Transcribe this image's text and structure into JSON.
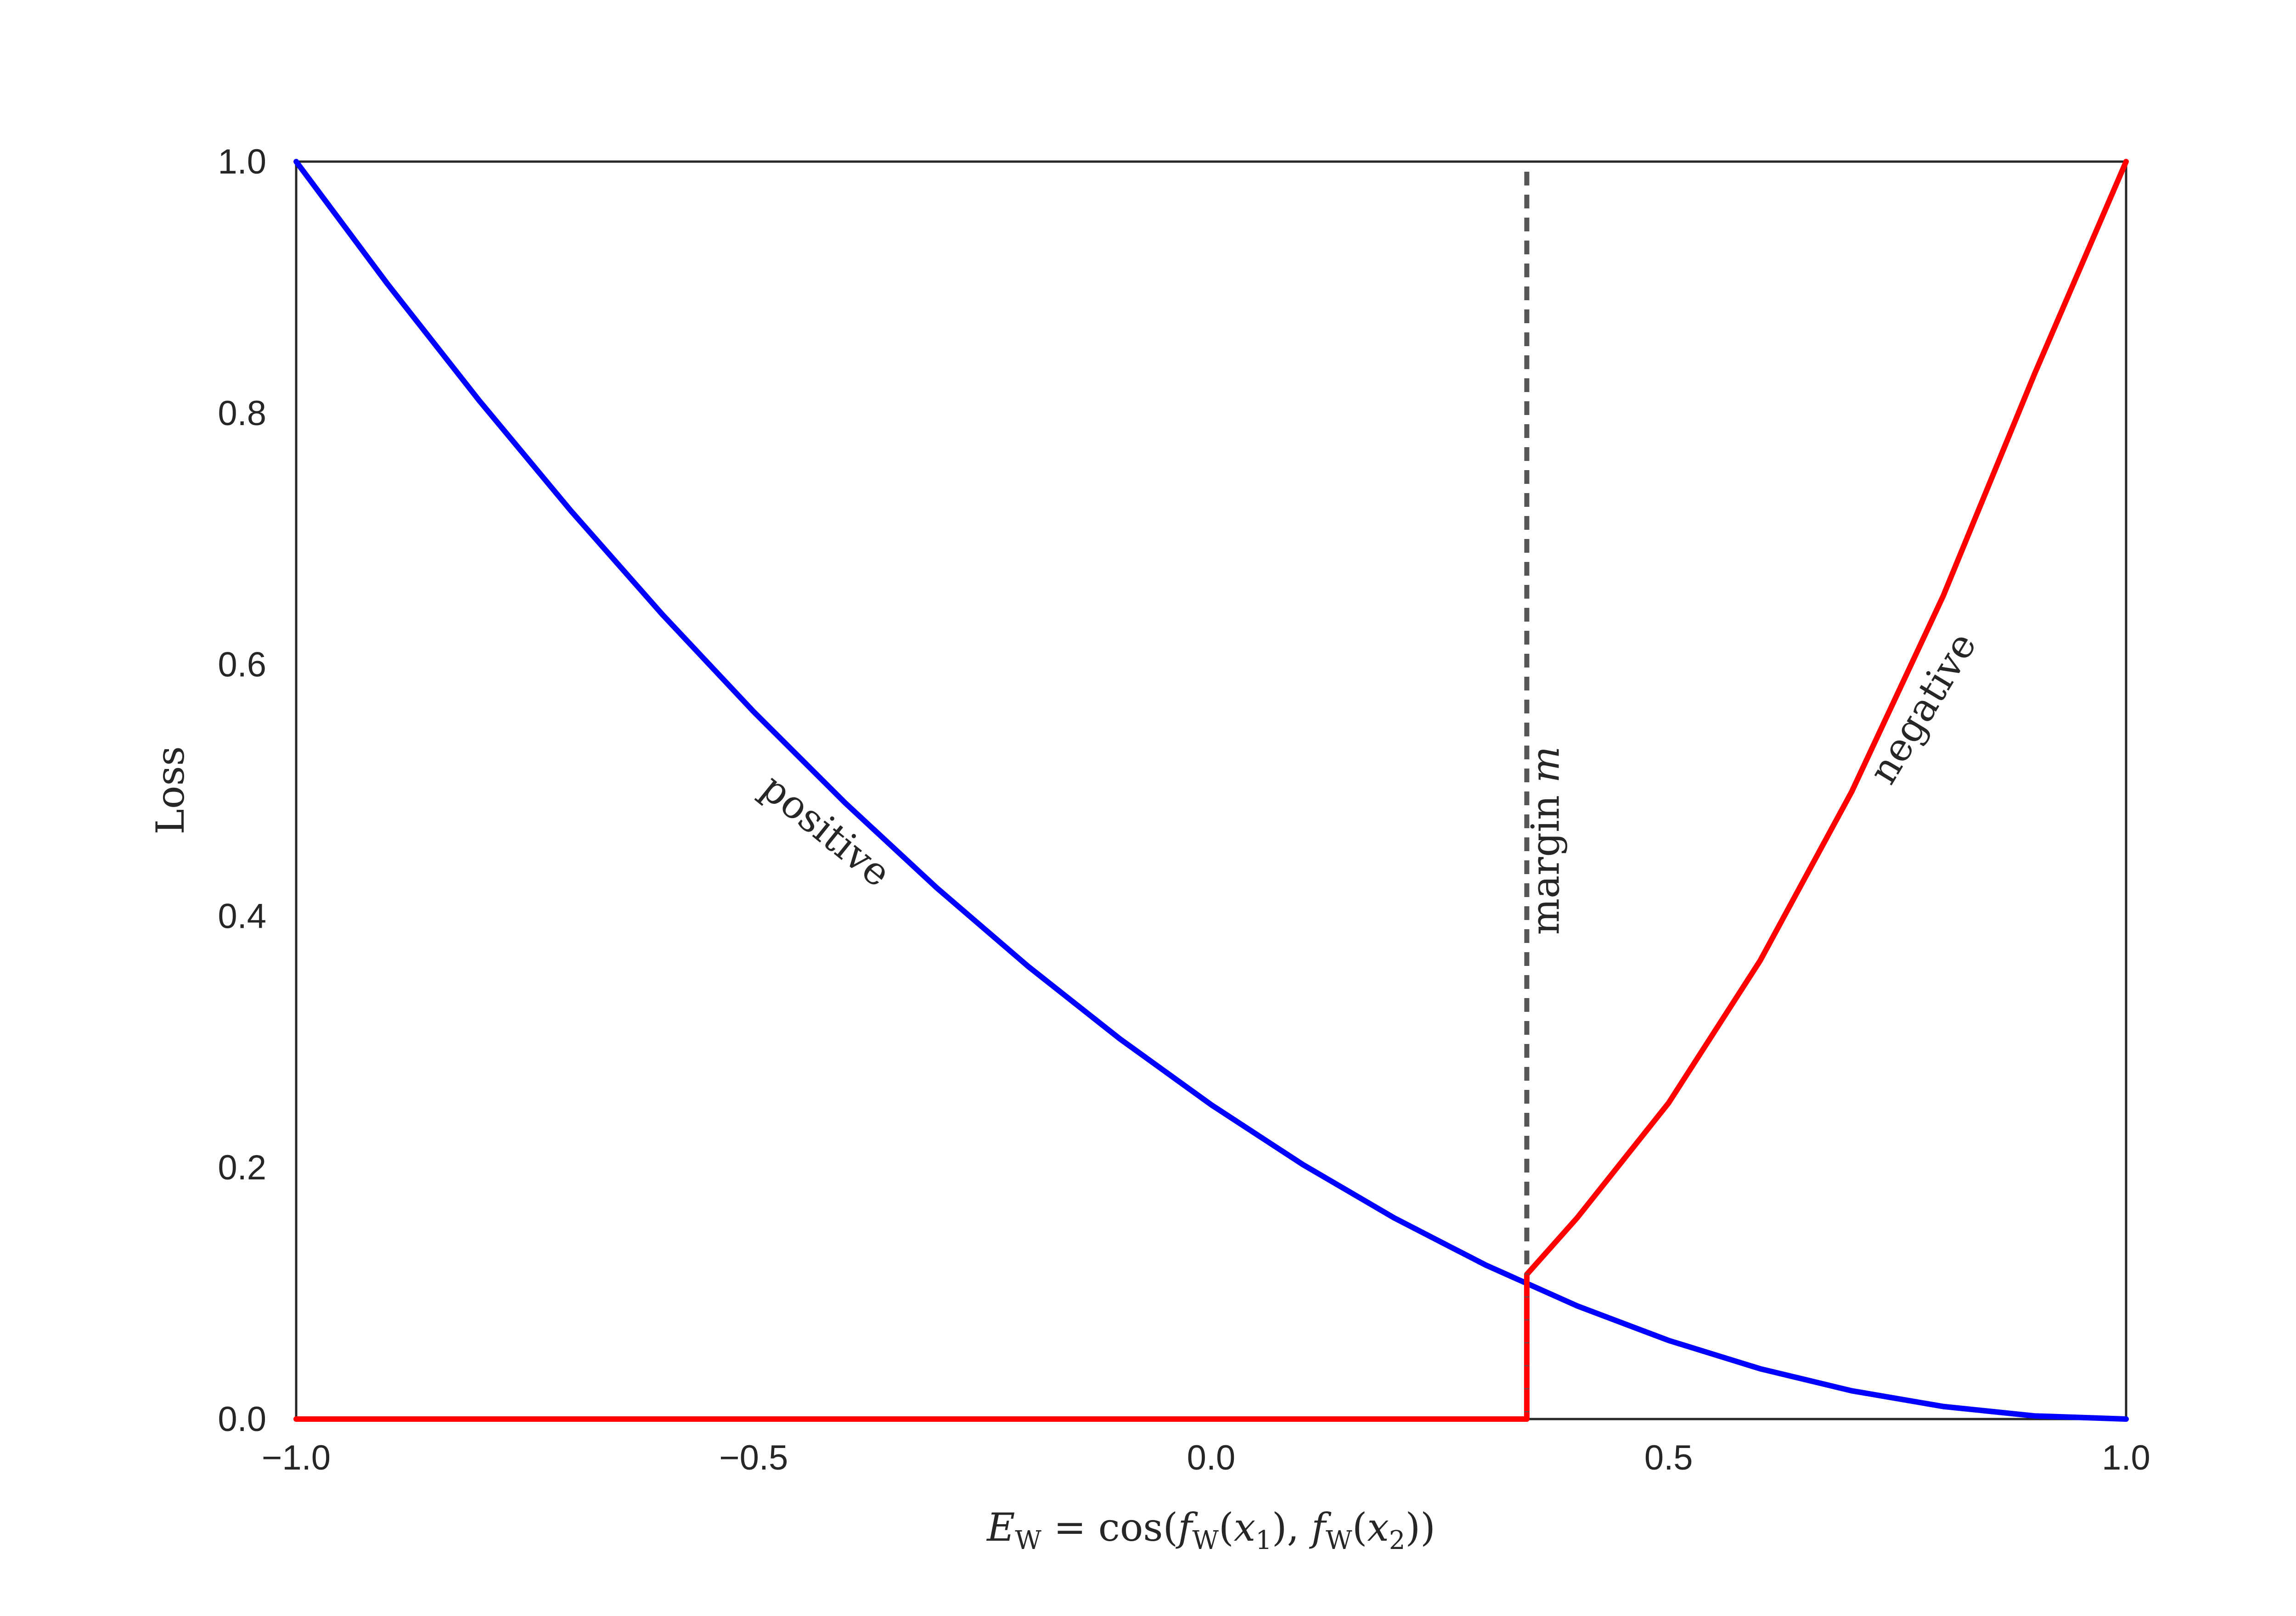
{
  "chart_data": {
    "type": "line",
    "title": "",
    "xlabel": "E_W = cos(f_W(x_1), f_W(x_2))",
    "xlabel_parts": {
      "E": "E",
      "W": "W",
      "eq": " = cos(",
      "f": "f",
      "open": "(",
      "x": "x",
      "sub1": "1",
      "sub2": "2",
      "close1": "), ",
      "close2": "))"
    },
    "ylabel": "Loss",
    "xlim": [
      -1.0,
      1.0
    ],
    "ylim": [
      0.0,
      1.0
    ],
    "xticks": [
      -1.0,
      -0.5,
      0.0,
      0.5,
      1.0
    ],
    "xtick_labels": [
      "−1.0",
      "−0.5",
      "0.0",
      "0.5",
      "1.0"
    ],
    "yticks": [
      0.0,
      0.2,
      0.4,
      0.6,
      0.8,
      1.0
    ],
    "ytick_labels": [
      "0.0",
      "0.2",
      "0.4",
      "0.6",
      "0.8",
      "1.0"
    ],
    "grid": false,
    "legend": "none",
    "margin": 0.345,
    "series": [
      {
        "name": "positive",
        "color": "#0000ff",
        "x": [
          -1.0,
          -0.9,
          -0.8,
          -0.7,
          -0.6,
          -0.5,
          -0.4,
          -0.3,
          -0.2,
          -0.1,
          0.0,
          0.1,
          0.2,
          0.3,
          0.4,
          0.5,
          0.6,
          0.7,
          0.8,
          0.9,
          1.0
        ],
        "y": [
          1.0,
          0.9025,
          0.81,
          0.7225,
          0.64,
          0.5625,
          0.49,
          0.4225,
          0.36,
          0.3025,
          0.25,
          0.2025,
          0.16,
          0.1225,
          0.09,
          0.0625,
          0.04,
          0.0225,
          0.01,
          0.0025,
          0.0
        ]
      },
      {
        "name": "negative",
        "color": "#ff0000",
        "x": [
          -1.0,
          0.345,
          0.345,
          0.4,
          0.5,
          0.6,
          0.7,
          0.8,
          0.9,
          1.0
        ],
        "y": [
          0.0,
          0.0,
          0.115,
          0.16,
          0.2514,
          0.3645,
          0.4988,
          0.6544,
          0.8313,
          1.0
        ]
      }
    ],
    "annotations": [
      {
        "text": "positive",
        "x": -0.43,
        "y": 0.46,
        "angle": 39
      },
      {
        "text": "negative",
        "x": 0.79,
        "y": 0.56,
        "angle": -59
      },
      {
        "text": "margin ",
        "math": "m",
        "x": 0.38,
        "y": 0.46,
        "angle": -90
      }
    ],
    "margin_line_color": "#555555",
    "axis_color": "#262626"
  }
}
